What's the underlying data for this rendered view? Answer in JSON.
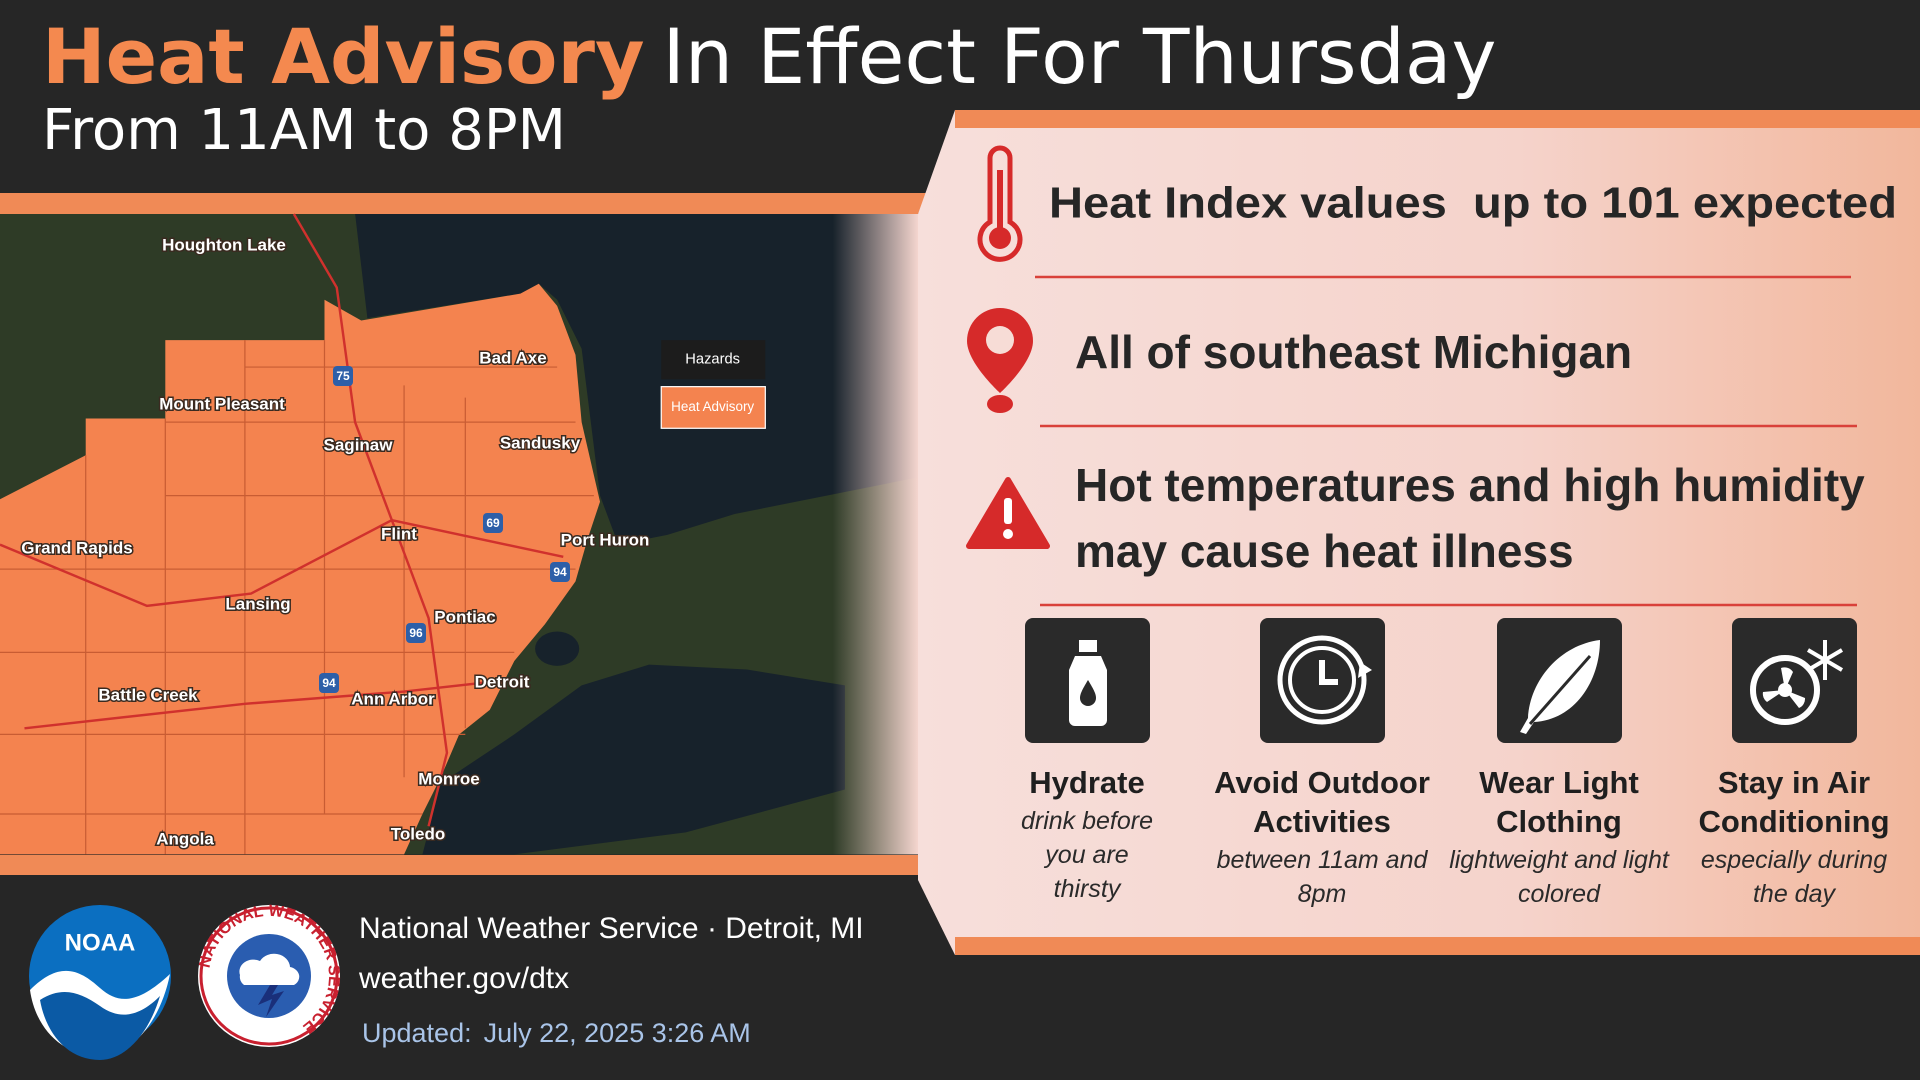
{
  "header": {
    "title_highlight": "Heat Advisory",
    "title_rest": "In Effect For Thursday",
    "subtitle": "From 11AM to 8PM"
  },
  "map": {
    "cities": [
      "Houghton Lake",
      "Mount Pleasant",
      "Bad Axe",
      "Saginaw",
      "Sandusky",
      "Grand Rapids",
      "Flint",
      "Port Huron",
      "Lansing",
      "Pontiac",
      "Battle Creek",
      "Ann Arbor",
      "Detroit",
      "Monroe",
      "Angola",
      "Toledo"
    ],
    "highways": [
      "75",
      "69",
      "94",
      "96",
      "94"
    ],
    "legend": {
      "title": "Hazards",
      "item": "Heat Advisory"
    }
  },
  "panel": {
    "heat_index": "Heat Index values  up to 101 expected",
    "area": "All of southeast Michigan",
    "risk": "Hot temperatures and high humidity may cause heat illness",
    "tips": [
      {
        "title": "Hydrate",
        "description": "drink before you are thirsty"
      },
      {
        "title": "Avoid Outdoor Activities",
        "description": "between 11am and 8pm"
      },
      {
        "title": "Wear Light Clothing",
        "description": "lightweight and light colored"
      },
      {
        "title": "Stay in Air Conditioning",
        "description": "especially during the day"
      }
    ]
  },
  "footer": {
    "noaa": "NOAA",
    "nws_seal": "NATIONAL WEATHER SERVICE",
    "office": "National Weather Service · Detroit, MI",
    "website": "weather.gov/dtx",
    "updated_label": "Updated:",
    "updated": "July 22, 2025 3:26 AM"
  }
}
